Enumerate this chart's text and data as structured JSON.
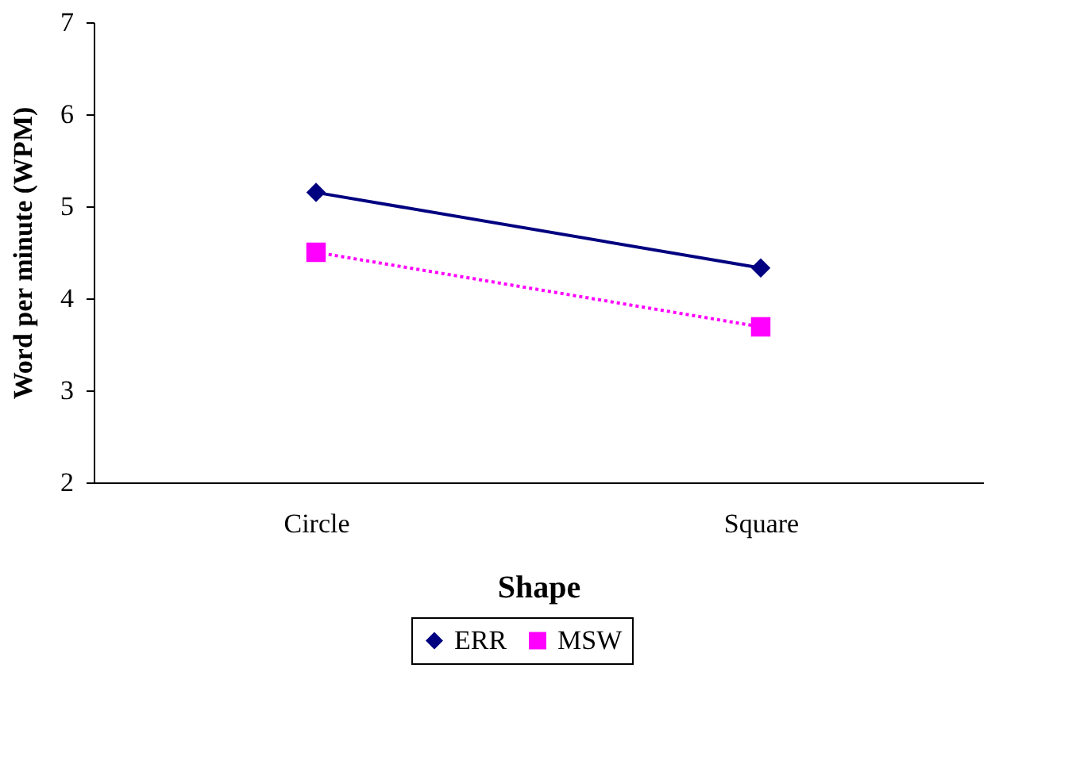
{
  "chart_data": {
    "type": "line",
    "xlabel": "Shape",
    "ylabel": "Word per minute (WPM)",
    "categories": [
      "Circle",
      "Square"
    ],
    "series": [
      {
        "name": "ERR",
        "color": "#000080",
        "values": [
          5.15,
          4.33
        ],
        "marker": "diamond",
        "line_style": "solid"
      },
      {
        "name": "MSW",
        "color": "#ff00ff",
        "values": [
          4.5,
          3.69
        ],
        "marker": "square",
        "line_style": "dotted"
      }
    ],
    "ylim": [
      2,
      7
    ],
    "yticks": [
      2,
      3,
      4,
      5,
      6,
      7
    ],
    "grid": false,
    "legend": "bottom"
  }
}
